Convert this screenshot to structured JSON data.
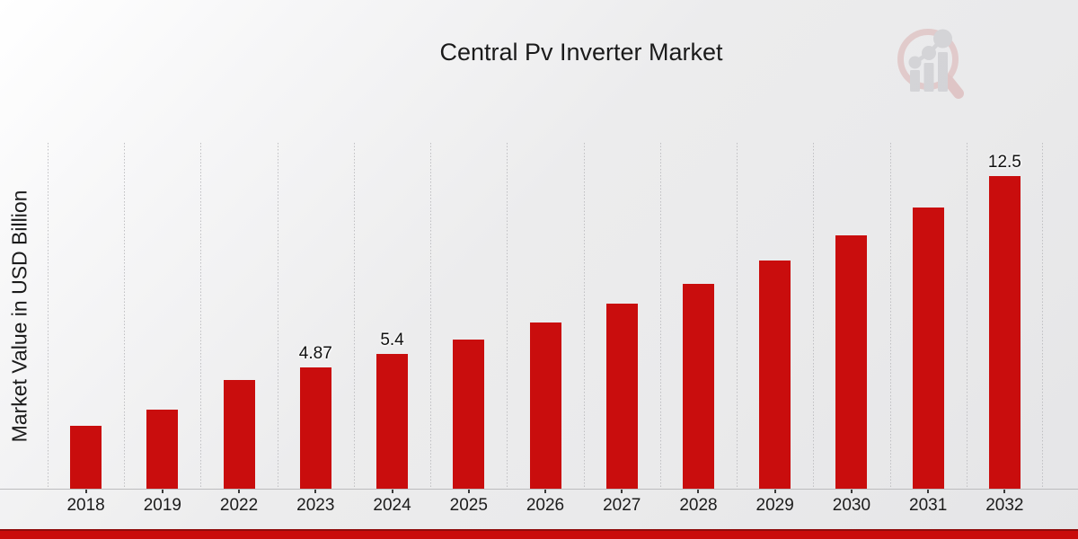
{
  "colors": {
    "bar": "#c90d0d",
    "accent_strip": "#c90b0b",
    "accent_strip_border": "#8e0b0b",
    "title_text": "#1b1b1b",
    "tick_text": "#1c1c1c",
    "grid_line": "#bfbfc2",
    "axis_line": "#bcbcbe",
    "watermark_ring": "#dcb6b6",
    "watermark_bars": "#c5c5ca"
  },
  "watermark": {
    "name": "magnifier-bar-growth-logo"
  },
  "chart_data": {
    "type": "bar",
    "title": "Central Pv Inverter Market",
    "ylabel": "Market Value in USD Billion",
    "xlabel": "",
    "categories": [
      "2018",
      "2019",
      "2022",
      "2023",
      "2024",
      "2025",
      "2026",
      "2027",
      "2028",
      "2029",
      "2030",
      "2031",
      "2032"
    ],
    "values": [
      2.56,
      3.18,
      4.37,
      4.87,
      5.4,
      6.0,
      6.66,
      7.4,
      8.22,
      9.13,
      10.14,
      11.26,
      12.5
    ],
    "value_labels": [
      "",
      "",
      "",
      "4.87",
      "5.4",
      "",
      "",
      "",
      "",
      "",
      "",
      "",
      "12.5"
    ],
    "ylim": [
      0,
      13.83
    ],
    "grid": "vertical-dotted",
    "legend": "none",
    "bar_color": "#c90d0d"
  }
}
